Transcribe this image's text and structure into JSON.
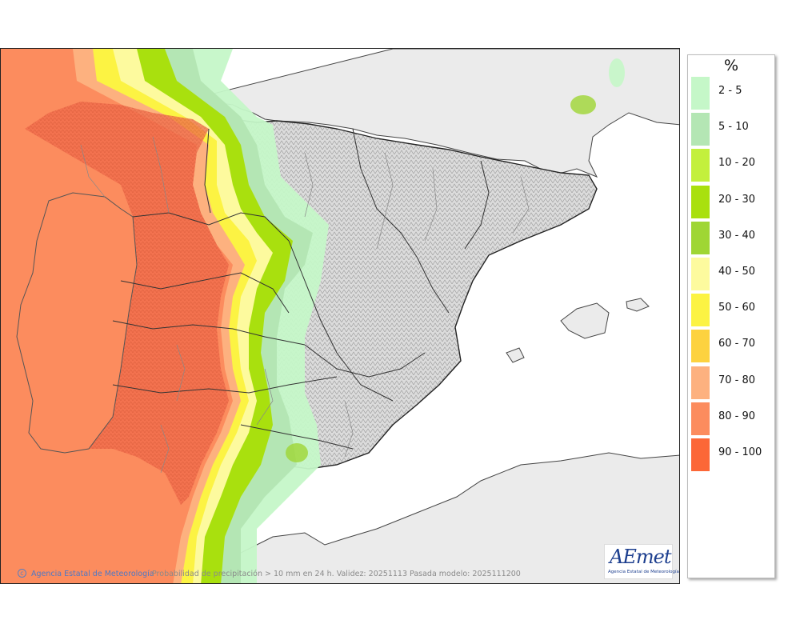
{
  "legend": {
    "unit": "%",
    "classes": [
      {
        "label": "2 - 5",
        "color": "#c5f7c8"
      },
      {
        "label": "5 - 10",
        "color": "#b4e6b4"
      },
      {
        "label": "10 - 20",
        "color": "#c3f03c"
      },
      {
        "label": "20 - 30",
        "color": "#a9e00e"
      },
      {
        "label": "30 - 40",
        "color": "#9fd634"
      },
      {
        "label": "40 - 50",
        "color": "#fdfa9e"
      },
      {
        "label": "50 - 60",
        "color": "#fcf343"
      },
      {
        "label": "60 - 70",
        "color": "#fdd23f"
      },
      {
        "label": "70 - 80",
        "color": "#fdb17f"
      },
      {
        "label": "80 - 90",
        "color": "#fc8c5e"
      },
      {
        "label": "90 - 100",
        "color": "#fc6737"
      }
    ]
  },
  "footer": {
    "copyright_symbol": "c",
    "credit": "Agencia Estatal de Meteorología",
    "caption": "Probabilidad de precipitación > 10 mm en 24 h. Validez: 20251113 Pasada modelo: 2025111200"
  },
  "logo": {
    "word": "AEmet",
    "subtitle": "Agencia Estatal de Meteorología"
  },
  "map": {
    "sea_color": "#ffffff",
    "land_color": "#ebebeb",
    "relief_color": "#d8d8d8",
    "border_color": "#222222",
    "internal_border_color": "#888888"
  }
}
